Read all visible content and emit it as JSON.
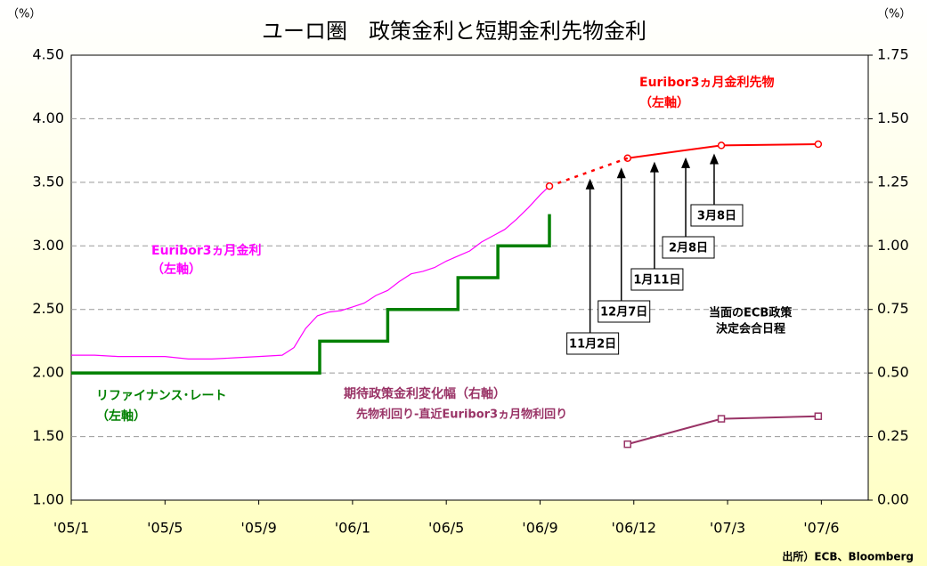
{
  "chart_data": {
    "type": "line",
    "title": "ユーロ圏　政策金利と短期金利先物金利",
    "y_unit": "（%）",
    "y2_unit": "（%）",
    "source": "出所）ECB、Bloomberg",
    "xlim": [
      0,
      30.5
    ],
    "xticks": [
      {
        "value": 0,
        "label": "'05/1"
      },
      {
        "value": 4,
        "label": "'05/5"
      },
      {
        "value": 8,
        "label": "'05/9"
      },
      {
        "value": 12,
        "label": "'06/1"
      },
      {
        "value": 16,
        "label": "'06/5"
      },
      {
        "value": 20,
        "label": "'06/9"
      },
      {
        "value": 23,
        "label": "'06/12"
      },
      {
        "value": 26,
        "label": "'07/3"
      },
      {
        "value": 29,
        "label": "'07/6"
      }
    ],
    "ylim": [
      1,
      4.5
    ],
    "yticks": [
      {
        "value": 1,
        "label": "1.00"
      },
      {
        "value": 1.5,
        "label": "1.50"
      },
      {
        "value": 2,
        "label": "2.00"
      },
      {
        "value": 2.5,
        "label": "2.50"
      },
      {
        "value": 3,
        "label": "3.00"
      },
      {
        "value": 3.5,
        "label": "3.50"
      },
      {
        "value": 4,
        "label": "4.00"
      },
      {
        "value": 4.5,
        "label": "4.50"
      }
    ],
    "y2lim": [
      0,
      1.75
    ],
    "y2ticks": [
      {
        "value": 0,
        "label": "0.00"
      },
      {
        "value": 0.25,
        "label": "0.25"
      },
      {
        "value": 0.5,
        "label": "0.50"
      },
      {
        "value": 0.75,
        "label": "0.75"
      },
      {
        "value": 1,
        "label": "1.00"
      },
      {
        "value": 1.25,
        "label": "1.25"
      },
      {
        "value": 1.5,
        "label": "1.50"
      },
      {
        "value": 1.75,
        "label": "1.75"
      }
    ],
    "grid": true,
    "series": [
      {
        "name": "Euribor3ヵ月金利",
        "note": "（左軸）",
        "color": "#ff00ff",
        "x": [
          0,
          1,
          2,
          3,
          4,
          5,
          6,
          7,
          8,
          9,
          9.5,
          10,
          10.5,
          11,
          11.5,
          12,
          12.5,
          13,
          13.5,
          14,
          14.5,
          15,
          15.5,
          16,
          16.5,
          17,
          17.5,
          18,
          18.5,
          19,
          19.5,
          20,
          20.3
        ],
        "values": [
          2.14,
          2.14,
          2.13,
          2.13,
          2.13,
          2.11,
          2.11,
          2.12,
          2.13,
          2.14,
          2.2,
          2.35,
          2.45,
          2.48,
          2.49,
          2.52,
          2.55,
          2.61,
          2.65,
          2.72,
          2.78,
          2.8,
          2.83,
          2.88,
          2.92,
          2.96,
          3.03,
          3.08,
          3.13,
          3.21,
          3.3,
          3.4,
          3.47
        ]
      },
      {
        "name": "リファイナンス･レート",
        "note": "（左軸）",
        "color": "#008000",
        "x": [
          0,
          10.6,
          10.6,
          13.5,
          13.5,
          16.5,
          16.5,
          18.2,
          18.2,
          20.3,
          20.3
        ],
        "values": [
          2,
          2,
          2.25,
          2.25,
          2.5,
          2.5,
          2.75,
          2.75,
          3,
          3,
          3.25
        ]
      },
      {
        "name": "Euribor3ヵ月金利先物",
        "note": "（左軸）",
        "color": "#ff0000",
        "marker": "circle",
        "x": [
          22.8,
          25.8,
          28.9
        ],
        "values": [
          3.69,
          3.79,
          3.8
        ]
      },
      {
        "name": "期待政策金利変化幅（右軸）",
        "note": "先物利回り-直近Euribor3ヵ月物利回り",
        "color": "#993366",
        "marker": "square",
        "axis": "y2",
        "x": [
          22.8,
          25.8,
          28.9
        ],
        "values": [
          0.22,
          0.32,
          0.33
        ]
      }
    ],
    "meetings_title": [
      "当面のECB政策",
      "決定会合日程"
    ],
    "meetings": [
      {
        "label": "11月2日",
        "x": 21.6
      },
      {
        "label": "12月7日",
        "x": 22.6
      },
      {
        "label": "1月11日",
        "x": 23.66
      },
      {
        "label": "2月8日",
        "x": 24.66
      },
      {
        "label": "3月8日",
        "x": 25.57
      }
    ]
  }
}
